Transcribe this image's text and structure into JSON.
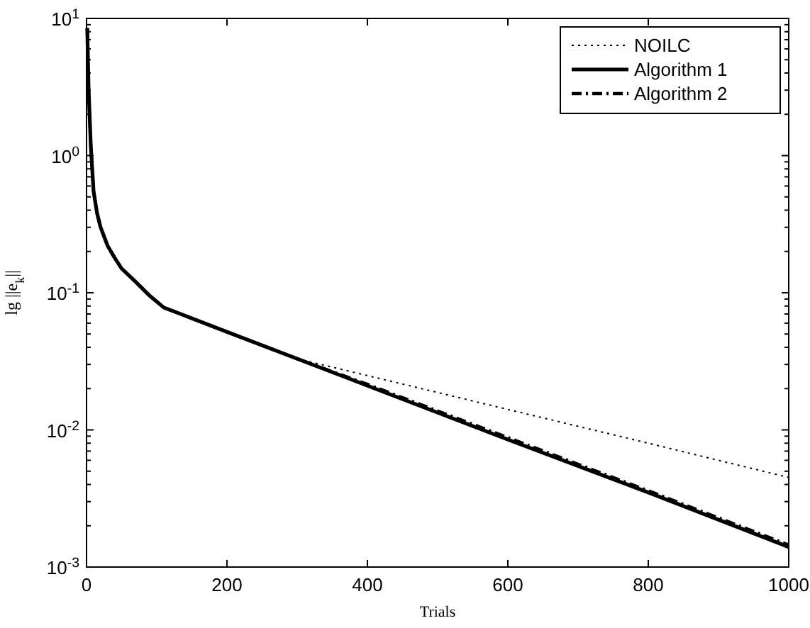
{
  "chart_data": {
    "type": "line",
    "xlabel": "Trials",
    "ylabel": "lg ||e$_{k}$||",
    "log": "y",
    "xlim": [
      0,
      1000
    ],
    "ylim": [
      0.001,
      10
    ],
    "xticks": [
      0,
      200,
      400,
      600,
      800,
      1000
    ],
    "yticks": [
      {
        "value": 0.001,
        "label": "10$^{-3}$"
      },
      {
        "value": 0.002,
        "label": null
      },
      {
        "value": 0.003,
        "label": null
      },
      {
        "value": 0.004,
        "label": null
      },
      {
        "value": 0.005,
        "label": null
      },
      {
        "value": 0.006,
        "label": null
      },
      {
        "value": 0.007,
        "label": null
      },
      {
        "value": 0.008,
        "label": null
      },
      {
        "value": 0.009,
        "label": null
      },
      {
        "value": 0.01,
        "label": "10$^{-2}$"
      },
      {
        "value": 0.02,
        "label": null
      },
      {
        "value": 0.03,
        "label": null
      },
      {
        "value": 0.04,
        "label": null
      },
      {
        "value": 0.05,
        "label": null
      },
      {
        "value": 0.06,
        "label": null
      },
      {
        "value": 0.07,
        "label": null
      },
      {
        "value": 0.08,
        "label": null
      },
      {
        "value": 0.09,
        "label": null
      },
      {
        "value": 0.1,
        "label": "10$^{-1}$"
      },
      {
        "value": 0.2,
        "label": null
      },
      {
        "value": 0.3,
        "label": null
      },
      {
        "value": 0.4,
        "label": null
      },
      {
        "value": 0.5,
        "label": null
      },
      {
        "value": 0.6,
        "label": null
      },
      {
        "value": 0.7,
        "label": null
      },
      {
        "value": 0.8,
        "label": null
      },
      {
        "value": 0.9,
        "label": null
      },
      {
        "value": 1,
        "label": "10$^{0}$"
      },
      {
        "value": 2,
        "label": null
      },
      {
        "value": 3,
        "label": null
      },
      {
        "value": 4,
        "label": null
      },
      {
        "value": 5,
        "label": null
      },
      {
        "value": 6,
        "label": null
      },
      {
        "value": 7,
        "label": null
      },
      {
        "value": 8,
        "label": null
      },
      {
        "value": 9,
        "label": null
      },
      {
        "value": 10,
        "label": "10$^{1}$"
      }
    ],
    "grid": false,
    "legend": "top right",
    "x": [
      1,
      3,
      6,
      10,
      15,
      20,
      30,
      40,
      50,
      70,
      90,
      110,
      200,
      300,
      400,
      600,
      800,
      1000
    ],
    "series": [
      {
        "name": "NOILC",
        "color": "#000000",
        "line_style": "dotted",
        "values": [
          8.5,
          3,
          1.2,
          0.55,
          0.38,
          0.3,
          0.22,
          0.18,
          0.15,
          0.12,
          0.095,
          0.078,
          0.0518,
          0.033,
          0.0249,
          0.0141,
          0.008,
          0.0045
        ]
      },
      {
        "name": "Algorithm 1",
        "color": "#000000",
        "line_style": "solid",
        "values": [
          8.5,
          3,
          1.2,
          0.55,
          0.38,
          0.3,
          0.22,
          0.18,
          0.15,
          0.12,
          0.095,
          0.078,
          0.0518,
          0.033,
          0.021,
          0.0085,
          0.0035,
          0.0014
        ]
      },
      {
        "name": "Algorithm 2",
        "color": "#000000",
        "line_style": "dashed",
        "values": [
          8.5,
          3,
          1.2,
          0.55,
          0.38,
          0.3,
          0.22,
          0.18,
          0.15,
          0.12,
          0.095,
          0.078,
          0.0518,
          0.033,
          0.0215,
          0.0088,
          0.0036,
          0.00145
        ]
      }
    ]
  }
}
